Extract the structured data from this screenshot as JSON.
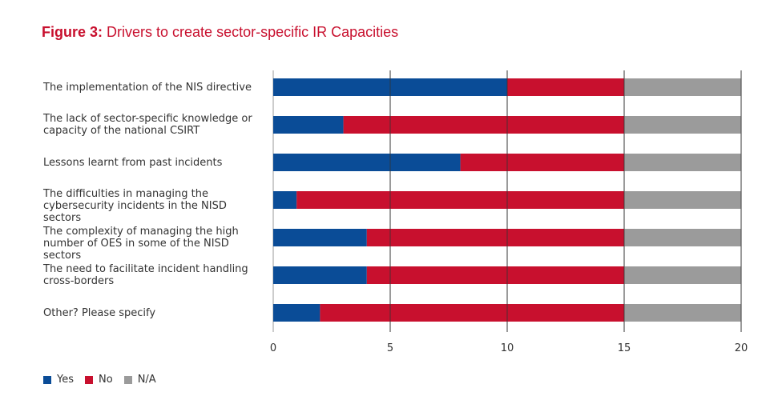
{
  "figure": {
    "title_prefix": "Figure 3:",
    "title_text": "Drivers to create sector-specific IR Capacities"
  },
  "chart_data": {
    "type": "bar",
    "orientation": "horizontal",
    "stacked": true,
    "title": "Figure 3: Drivers to create sector-specific IR Capacities",
    "categories": [
      [
        "The implementation of the NIS directive"
      ],
      [
        "The lack of sector-specific knowledge or",
        "capacity of the national CSIRT"
      ],
      [
        "Lessons learnt from past incidents"
      ],
      [
        "The difficulties in managing the",
        "cybersecurity incidents in the NISD sectors"
      ],
      [
        "The complexity of managing the high",
        "number of OES in some of the NISD sectors"
      ],
      [
        "The need to facilitate incident handling",
        "cross-borders"
      ],
      [
        "Other? Please specify"
      ]
    ],
    "series": [
      {
        "name": "Yes",
        "color": "#0a4c97",
        "values": [
          10,
          3,
          8,
          1,
          4,
          4,
          2
        ]
      },
      {
        "name": "No",
        "color": "#c8102e",
        "values": [
          5,
          12,
          7,
          14,
          11,
          11,
          13
        ]
      },
      {
        "name": "N/A",
        "color": "#9b9b9b",
        "values": [
          5,
          5,
          5,
          5,
          5,
          5,
          5
        ]
      }
    ],
    "xlim": [
      0,
      20
    ],
    "xticks": [
      0,
      5,
      10,
      15,
      20
    ],
    "grid": "vertical",
    "legend_position": "bottom-left",
    "xlabel": "",
    "ylabel": ""
  }
}
